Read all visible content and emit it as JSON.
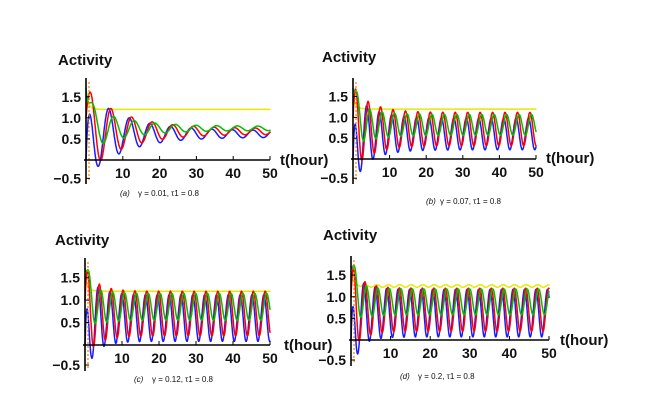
{
  "figure": {
    "series_colors": [
      "#e8e800",
      "#1a1aff",
      "#ff0000",
      "#00c000"
    ],
    "marker_color": "#ff8000"
  },
  "chart_data": [
    {
      "type": "line",
      "panel": "(a)",
      "caption_label": "(a)",
      "caption_params": "γ = 0.01,  τ1 = 0.8",
      "ylabel": "Activity",
      "xlabel": "t(hour)",
      "xlim": [
        0,
        50
      ],
      "ylim": [
        -0.6,
        1.85
      ],
      "xticks": [
        10,
        20,
        30,
        40,
        50
      ],
      "xtick_labels": [
        "10",
        "20",
        "30",
        "40",
        "50"
      ],
      "yticks": [
        -0.5,
        0.5,
        1.0,
        1.5
      ],
      "ytick_labels": [
        "−0.5",
        "0.5",
        "1.0",
        "1.5"
      ],
      "series": [
        {
          "name": "yellow",
          "color": "#e8e800",
          "start": 1.5,
          "level": 1.2,
          "amp0": 0.0,
          "amp1": 0.0,
          "decay": 0.5,
          "period": 6.0,
          "phase": 0
        },
        {
          "name": "blue",
          "color": "#1a1aff",
          "start": 0.0,
          "level": 0.62,
          "amp0": 1.05,
          "amp1": 0.08,
          "decay": 0.1,
          "period": 5.6,
          "phase": 0.9
        },
        {
          "name": "red",
          "color": "#ff0000",
          "start": 1.0,
          "level": 0.68,
          "amp0": 1.0,
          "amp1": 0.07,
          "decay": 0.1,
          "period": 5.6,
          "phase": 0.2
        },
        {
          "name": "green",
          "color": "#00c000",
          "start": 1.7,
          "level": 0.75,
          "amp0": 0.55,
          "amp1": 0.05,
          "decay": 0.1,
          "period": 5.6,
          "phase": -0.6
        }
      ]
    },
    {
      "type": "line",
      "panel": "(b)",
      "caption_label": "(b)",
      "caption_params": "γ = 0.07,  τ1 = 0.8",
      "ylabel": "Activity",
      "xlabel": "t(hour)",
      "xlim": [
        0,
        50
      ],
      "ylim": [
        -0.6,
        1.85
      ],
      "xticks": [
        10,
        20,
        30,
        40,
        50
      ],
      "xtick_labels": [
        "10",
        "20",
        "30",
        "40",
        "50"
      ],
      "yticks": [
        -0.5,
        0.5,
        1.0,
        1.5
      ],
      "ytick_labels": [
        "−0.5",
        "0.5",
        "1.0",
        "1.5"
      ],
      "series": [
        {
          "name": "yellow",
          "color": "#e8e800",
          "start": 1.5,
          "level": 1.2,
          "amp0": 0.0,
          "amp1": 0.0,
          "decay": 0.5,
          "period": 6.0,
          "phase": 0
        },
        {
          "name": "blue",
          "color": "#1a1aff",
          "start": 0.0,
          "level": 0.6,
          "amp0": 1.05,
          "amp1": 0.38,
          "decay": 0.2,
          "period": 3.4,
          "phase": 0.9
        },
        {
          "name": "red",
          "color": "#ff0000",
          "start": 1.0,
          "level": 0.72,
          "amp0": 1.0,
          "amp1": 0.4,
          "decay": 0.2,
          "period": 3.4,
          "phase": 0.2
        },
        {
          "name": "green",
          "color": "#00c000",
          "start": 1.7,
          "level": 0.82,
          "amp0": 0.55,
          "amp1": 0.25,
          "decay": 0.2,
          "period": 3.4,
          "phase": -0.6
        }
      ]
    },
    {
      "type": "line",
      "panel": "(c)",
      "caption_label": "(c)",
      "caption_params": "γ = 0.12,  τ1 = 0.8",
      "ylabel": "Activity",
      "xlabel": "t(hour)",
      "xlim": [
        0,
        50
      ],
      "ylim": [
        -0.6,
        1.85
      ],
      "xticks": [
        10,
        20,
        30,
        40,
        50
      ],
      "xtick_labels": [
        "10",
        "20",
        "30",
        "40",
        "50"
      ],
      "yticks": [
        -0.5,
        0.5,
        1.0,
        1.5
      ],
      "ytick_labels": [
        "−0.5",
        "0.5",
        "1.0",
        "1.5"
      ],
      "series": [
        {
          "name": "yellow",
          "color": "#e8e800",
          "start": 1.5,
          "level": 1.2,
          "amp0": 0.0,
          "amp1": 0.0,
          "decay": 0.5,
          "period": 6.0,
          "phase": 0
        },
        {
          "name": "blue",
          "color": "#1a1aff",
          "start": 0.0,
          "level": 0.6,
          "amp0": 1.05,
          "amp1": 0.52,
          "decay": 0.3,
          "period": 3.2,
          "phase": 0.9
        },
        {
          "name": "red",
          "color": "#ff0000",
          "start": 1.0,
          "level": 0.7,
          "amp0": 1.0,
          "amp1": 0.5,
          "decay": 0.3,
          "period": 3.2,
          "phase": 0.2
        },
        {
          "name": "green",
          "color": "#00c000",
          "start": 1.7,
          "level": 0.85,
          "amp0": 0.55,
          "amp1": 0.3,
          "decay": 0.3,
          "period": 3.2,
          "phase": -0.6
        }
      ]
    },
    {
      "type": "line",
      "panel": "(d)",
      "caption_label": "(d)",
      "caption_params": "γ = 0.2,  τ1 = 0.8",
      "ylabel": "Activity",
      "xlabel": "t(hour)",
      "xlim": [
        0,
        50
      ],
      "ylim": [
        -0.6,
        1.85
      ],
      "xticks": [
        10,
        20,
        30,
        40,
        50
      ],
      "xtick_labels": [
        "10",
        "20",
        "30",
        "40",
        "50"
      ],
      "yticks": [
        -0.5,
        0.5,
        1.0,
        1.5
      ],
      "ytick_labels": [
        "−0.5",
        "0.5",
        "1.0",
        "1.5"
      ],
      "series": [
        {
          "name": "yellow",
          "color": "#e8e800",
          "start": 1.5,
          "level": 1.25,
          "amp0": 0.0,
          "amp1": 0.03,
          "decay": 0.5,
          "period": 2.9,
          "phase": 0
        },
        {
          "name": "blue",
          "color": "#1a1aff",
          "start": 0.0,
          "level": 0.62,
          "amp0": 1.05,
          "amp1": 0.55,
          "decay": 0.35,
          "period": 2.9,
          "phase": 0.9
        },
        {
          "name": "red",
          "color": "#ff0000",
          "start": 1.0,
          "level": 0.7,
          "amp0": 1.0,
          "amp1": 0.5,
          "decay": 0.35,
          "period": 2.9,
          "phase": 0.2
        },
        {
          "name": "green",
          "color": "#00c000",
          "start": 1.7,
          "level": 0.88,
          "amp0": 0.55,
          "amp1": 0.3,
          "decay": 0.35,
          "period": 2.9,
          "phase": -0.6
        }
      ]
    }
  ]
}
